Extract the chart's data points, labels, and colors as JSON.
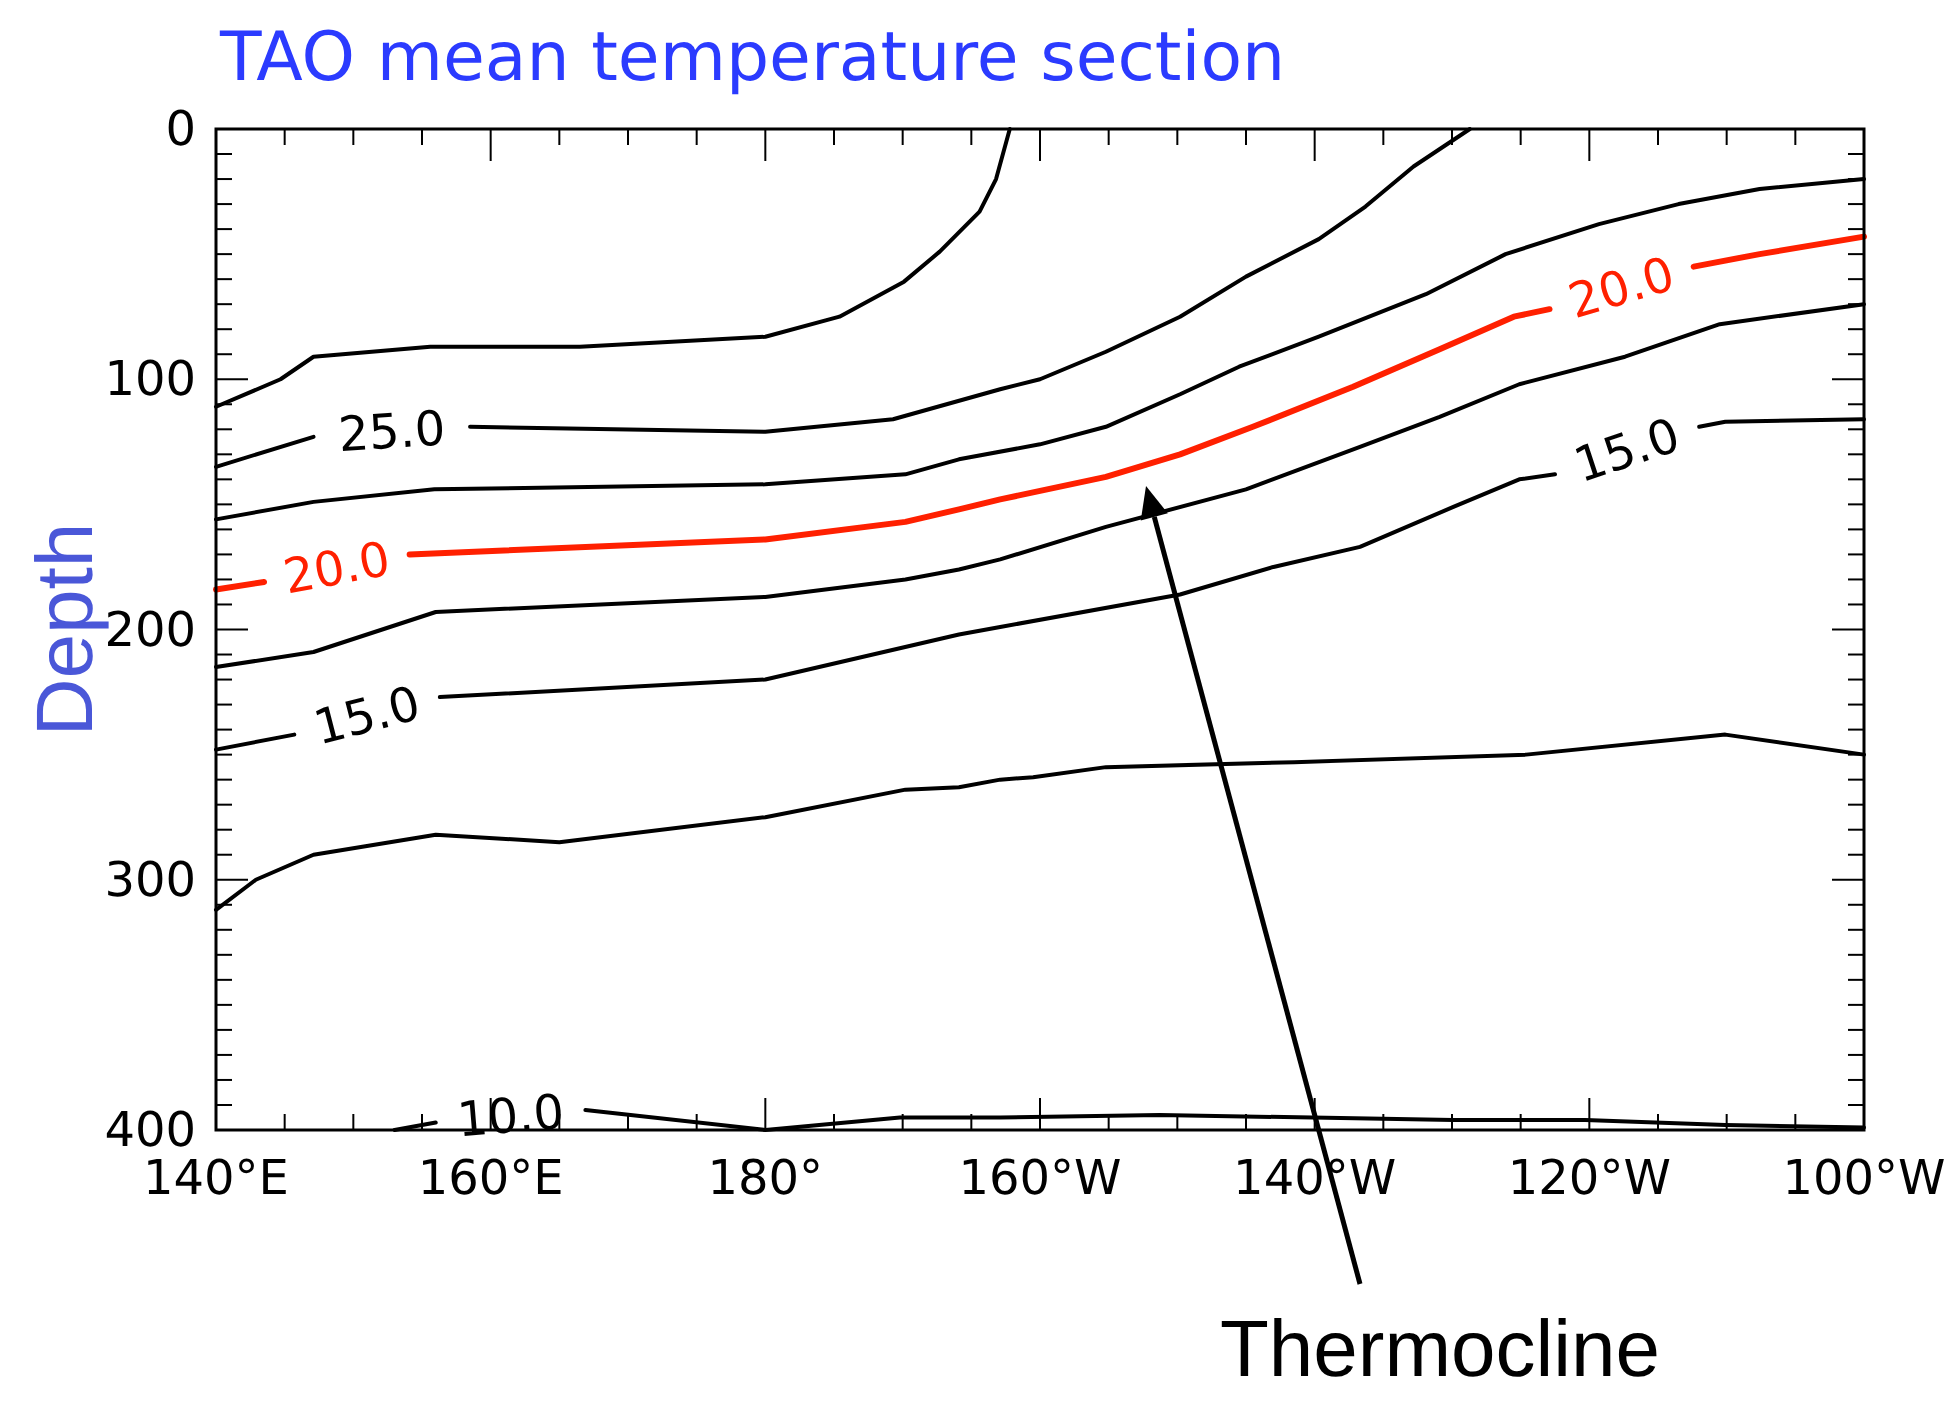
{
  "chart_data": {
    "type": "line",
    "title": "TAO mean temperature section",
    "ylabel": "Depth",
    "xlim": [
      140,
      260
    ],
    "ylim": [
      400,
      0
    ],
    "xticks": [
      {
        "value": 140,
        "label": "140°E"
      },
      {
        "value": 145,
        "label": null
      },
      {
        "value": 150,
        "label": null
      },
      {
        "value": 155,
        "label": null
      },
      {
        "value": 160,
        "label": "160°E"
      },
      {
        "value": 165,
        "label": null
      },
      {
        "value": 170,
        "label": null
      },
      {
        "value": 175,
        "label": null
      },
      {
        "value": 180,
        "label": "180°"
      },
      {
        "value": 185,
        "label": null
      },
      {
        "value": 190,
        "label": null
      },
      {
        "value": 195,
        "label": null
      },
      {
        "value": 200,
        "label": "160°W"
      },
      {
        "value": 205,
        "label": null
      },
      {
        "value": 210,
        "label": null
      },
      {
        "value": 215,
        "label": null
      },
      {
        "value": 220,
        "label": "140°W"
      },
      {
        "value": 225,
        "label": null
      },
      {
        "value": 230,
        "label": null
      },
      {
        "value": 235,
        "label": null
      },
      {
        "value": 240,
        "label": "120°W"
      },
      {
        "value": 245,
        "label": null
      },
      {
        "value": 250,
        "label": null
      },
      {
        "value": 255,
        "label": null
      },
      {
        "value": 260,
        "label": "100°W"
      }
    ],
    "yticks": [
      0,
      {
        "value": 10,
        "label": null
      },
      {
        "value": 20,
        "label": null
      },
      {
        "value": 30,
        "label": null
      },
      {
        "value": 40,
        "label": null
      },
      {
        "value": 50,
        "label": null
      },
      {
        "value": 60,
        "label": null
      },
      {
        "value": 70,
        "label": null
      },
      {
        "value": 80,
        "label": null
      },
      {
        "value": 90,
        "label": null
      },
      100,
      {
        "value": 110,
        "label": null
      },
      {
        "value": 120,
        "label": null
      },
      {
        "value": 130,
        "label": null
      },
      {
        "value": 140,
        "label": null
      },
      {
        "value": 150,
        "label": null
      },
      {
        "value": 160,
        "label": null
      },
      {
        "value": 170,
        "label": null
      },
      {
        "value": 180,
        "label": null
      },
      {
        "value": 190,
        "label": null
      },
      200,
      {
        "value": 210,
        "label": null
      },
      {
        "value": 220,
        "label": null
      },
      {
        "value": 230,
        "label": null
      },
      {
        "value": 240,
        "label": null
      },
      {
        "value": 250,
        "label": null
      },
      {
        "value": 260,
        "label": null
      },
      {
        "value": 270,
        "label": null
      },
      {
        "value": 280,
        "label": null
      },
      {
        "value": 290,
        "label": null
      },
      300,
      {
        "value": 310,
        "label": null
      },
      {
        "value": 320,
        "label": null
      },
      {
        "value": 330,
        "label": null
      },
      {
        "value": 340,
        "label": null
      },
      {
        "value": 350,
        "label": null
      },
      {
        "value": 360,
        "label": null
      },
      {
        "value": 370,
        "label": null
      },
      {
        "value": 380,
        "label": null
      },
      {
        "value": 390,
        "label": null
      },
      400
    ],
    "grid": false,
    "marker": "none",
    "line_style": "solid",
    "series": [
      {
        "color": "#000000",
        "x": [
          140,
          144.7,
          147.1,
          155.6,
          166.5,
          180,
          185.4,
          190.1,
          192.7,
          195.6,
          196.8,
          197.8
        ],
        "values": [
          111,
          100,
          91,
          87,
          87,
          83,
          75,
          61,
          49,
          33,
          20,
          0
        ]
      },
      {
        "name": "25.0",
        "color": "#000000",
        "x": [
          140,
          147.1,
          152.8,
          158.5,
          180,
          189.3,
          197.1,
          200,
          204.8,
          210.2,
          215,
          220.3,
          223.7,
          227.2,
          231.3
        ],
        "values": [
          135,
          123,
          null,
          119,
          121,
          116,
          104,
          100,
          89,
          75,
          59,
          44,
          31,
          15,
          0
        ]
      },
      {
        "color": "#000000",
        "x": [
          140,
          147.1,
          155.9,
          180,
          190.2,
          194.1,
          200,
          204.8,
          210.2,
          214.5,
          220.3,
          228.1,
          233.9,
          240.7,
          246.5,
          252.4,
          260
        ],
        "values": [
          156,
          149,
          144,
          142,
          138,
          132,
          126,
          119,
          106,
          95,
          83,
          66,
          50,
          38,
          30,
          24,
          20
        ]
      },
      {
        "name": "20.0",
        "color": "#ff2000",
        "x": [
          140,
          143.5,
          148.8,
          154.1,
          180,
          190.2,
          194.1,
          197.1,
          204.8,
          210.2,
          215.5,
          222.8,
          229.1,
          234.5,
          237.1,
          242.4,
          247.6,
          252.4,
          260
        ],
        "values": [
          184,
          181,
          null,
          170,
          164,
          157,
          152,
          148,
          139,
          130,
          119,
          103,
          88,
          75,
          72,
          null,
          55,
          50,
          43
        ]
      },
      {
        "color": "#000000",
        "x": [
          140,
          147.1,
          156,
          180,
          190.2,
          194.1,
          197.1,
          204.8,
          215,
          223.3,
          229.1,
          234.9,
          242.6,
          249.5,
          260
        ],
        "values": [
          215,
          209,
          193,
          187,
          180,
          176,
          172,
          159,
          144,
          127,
          115,
          102,
          91,
          78,
          70
        ]
      },
      {
        "name": "15.0",
        "color": "#000000",
        "x": [
          140,
          145.7,
          151,
          156.3,
          180,
          194.1,
          197.1,
          210.2,
          217,
          223.3,
          230.1,
          234.9,
          237.5,
          242.8,
          248,
          249.9,
          260
        ],
        "values": [
          248,
          242,
          null,
          227,
          220,
          202,
          199,
          186,
          175,
          167,
          151,
          140,
          138,
          null,
          119,
          117,
          116
        ]
      },
      {
        "color": "#000000",
        "x": [
          140,
          142.9,
          147.1,
          156,
          165,
          180,
          190.2,
          194.1,
          197.1,
          199.5,
          204.8,
          218.5,
          235.4,
          249.9,
          260
        ],
        "values": [
          312,
          300,
          290,
          282,
          285,
          275,
          264,
          263,
          260,
          259,
          255,
          253,
          250,
          242,
          250
        ]
      },
      {
        "name": "10.0",
        "color": "#000000",
        "x": [
          153,
          156,
          161.5,
          166.9,
          180,
          189.8,
          197.1,
          208.7,
          230.1,
          239.7,
          249.9,
          260
        ],
        "values": [
          400,
          397,
          null,
          392,
          400,
          395,
          395,
          394,
          396,
          396,
          398,
          399
        ]
      }
    ],
    "annotations": [
      "Thermocline"
    ]
  }
}
